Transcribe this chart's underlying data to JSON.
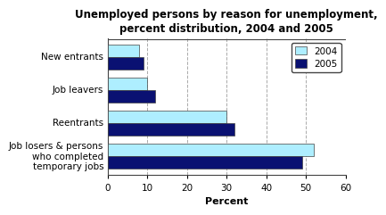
{
  "title": "Unemployed persons by reason for unemployment,\npercent distribution, 2004 and 2005",
  "categories": [
    "Job losers & persons\nwho completed\ntemporary jobs",
    "Reentrants",
    "Job leavers",
    "New entrants"
  ],
  "values_2004": [
    52.0,
    30.0,
    10.0,
    8.0
  ],
  "values_2005": [
    49.0,
    32.0,
    12.0,
    9.0
  ],
  "color_2004": "#aeeeff",
  "color_2005": "#0a1172",
  "xlabel": "Percent",
  "xlim": [
    0,
    60
  ],
  "xticks": [
    0,
    10,
    20,
    30,
    40,
    50,
    60
  ],
  "legend_labels": [
    "2004",
    "2005"
  ],
  "background_color": "#ffffff",
  "title_fontsize": 8.5,
  "axis_fontsize": 8,
  "tick_fontsize": 7.5
}
